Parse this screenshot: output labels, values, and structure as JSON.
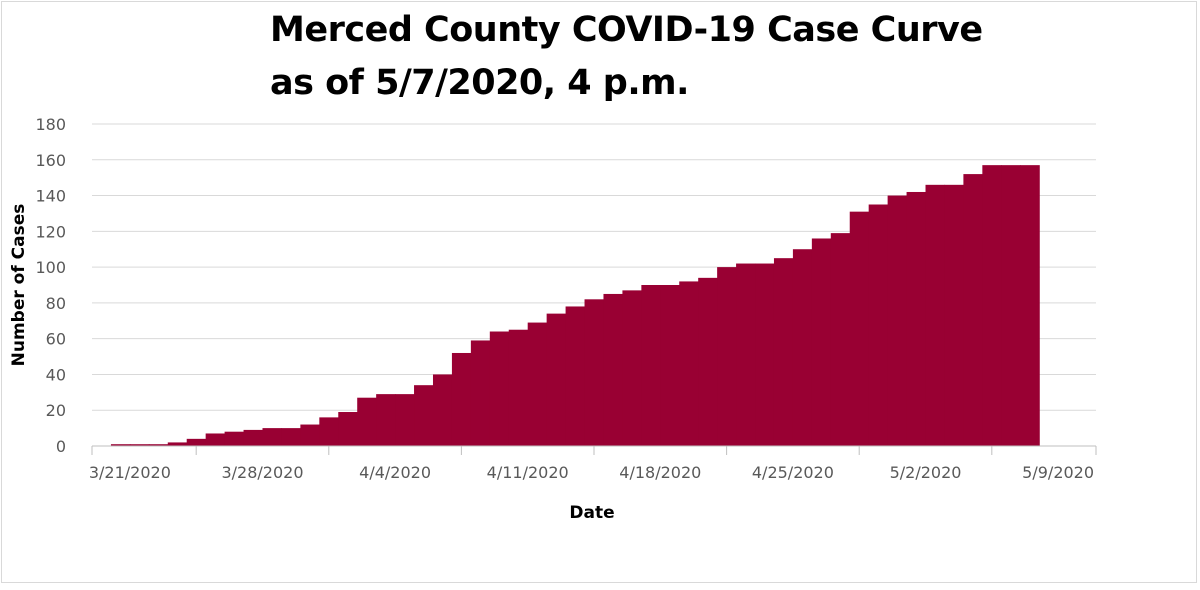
{
  "chart_data": {
    "type": "area",
    "step": true,
    "title": [
      "Merced County COVID-19 Case Curve",
      "as of 5/7/2020, 4 p.m."
    ],
    "xlabel": "Date",
    "ylabel": "Number of Cases",
    "ylim": [
      0,
      180
    ],
    "yticks": [
      0,
      20,
      40,
      60,
      80,
      100,
      120,
      140,
      160,
      180
    ],
    "xlim": [
      "2020-03-19",
      "2020-05-11"
    ],
    "xticks": [
      "3/21/2020",
      "3/28/2020",
      "4/4/2020",
      "4/11/2020",
      "4/18/2020",
      "4/25/2020",
      "5/2/2020",
      "5/9/2020"
    ],
    "grid": true,
    "fill_color": "#990033",
    "series": [
      {
        "dates": [
          "2020-03-20",
          "2020-03-21",
          "2020-03-22",
          "2020-03-23",
          "2020-03-24",
          "2020-03-25",
          "2020-03-26",
          "2020-03-27",
          "2020-03-28",
          "2020-03-29",
          "2020-03-30",
          "2020-03-31",
          "2020-04-01",
          "2020-04-02",
          "2020-04-03",
          "2020-04-04",
          "2020-04-05",
          "2020-04-06",
          "2020-04-07",
          "2020-04-08",
          "2020-04-09",
          "2020-04-10",
          "2020-04-11",
          "2020-04-12",
          "2020-04-13",
          "2020-04-14",
          "2020-04-15",
          "2020-04-16",
          "2020-04-17",
          "2020-04-18",
          "2020-04-19",
          "2020-04-20",
          "2020-04-21",
          "2020-04-22",
          "2020-04-23",
          "2020-04-24",
          "2020-04-25",
          "2020-04-26",
          "2020-04-27",
          "2020-04-28",
          "2020-04-29",
          "2020-04-30",
          "2020-05-01",
          "2020-05-02",
          "2020-05-03",
          "2020-05-04",
          "2020-05-05",
          "2020-05-06",
          "2020-05-07"
        ],
        "values": [
          1,
          1,
          1,
          2,
          4,
          7,
          8,
          9,
          10,
          10,
          12,
          16,
          19,
          27,
          29,
          29,
          34,
          40,
          52,
          59,
          64,
          65,
          69,
          74,
          78,
          82,
          85,
          87,
          90,
          90,
          92,
          94,
          100,
          102,
          102,
          105,
          110,
          116,
          119,
          131,
          135,
          140,
          142,
          146,
          146,
          152,
          157,
          157,
          157
        ]
      }
    ]
  }
}
